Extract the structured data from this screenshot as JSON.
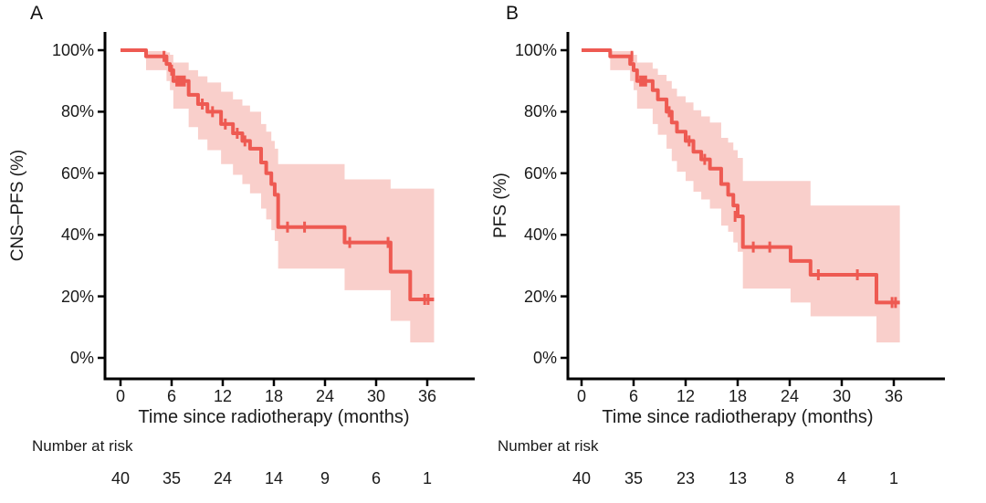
{
  "colors": {
    "line": "#ee5a52",
    "band": "#f9cfcb",
    "axis": "#000000",
    "text": "#1a1a1a"
  },
  "chart_data": [
    {
      "type": "line",
      "subtype": "kaplan_meier_step_with_ci",
      "panel_label": "A",
      "ylabel": "CNS–PFS (%)",
      "xlabel": "Time since radiotherapy (months)",
      "xlim": [
        0,
        38
      ],
      "ylim": [
        0,
        100
      ],
      "grid": false,
      "legend": false,
      "x_ticks": [
        0,
        6,
        12,
        18,
        24,
        30,
        36
      ],
      "x_tick_labels": [
        "0",
        "6",
        "12",
        "18",
        "24",
        "30",
        "36"
      ],
      "y_tick_values": [
        0,
        20,
        40,
        60,
        80,
        100
      ],
      "y_tick_labels": [
        "0%",
        "20%",
        "40%",
        "60%",
        "80%",
        "100%"
      ],
      "steps": [
        [
          0,
          100
        ],
        [
          3.0,
          98
        ],
        [
          5.4,
          95.5
        ],
        [
          5.8,
          93.5
        ],
        [
          6.2,
          90
        ],
        [
          8.0,
          85.5
        ],
        [
          9.1,
          82.5
        ],
        [
          10.2,
          80
        ],
        [
          11.8,
          76
        ],
        [
          13.2,
          73
        ],
        [
          14.3,
          70.5
        ],
        [
          15.2,
          68
        ],
        [
          16.5,
          63.5
        ],
        [
          17.1,
          60
        ],
        [
          17.7,
          56.5
        ],
        [
          18.1,
          53
        ],
        [
          18.5,
          42.5
        ],
        [
          26.3,
          37.5
        ],
        [
          31.7,
          28
        ],
        [
          34.0,
          19
        ]
      ],
      "end_time": 36.8,
      "censors": [
        [
          5.1,
          98
        ],
        [
          6.0,
          93.5
        ],
        [
          6.6,
          90
        ],
        [
          6.9,
          90
        ],
        [
          7.2,
          90
        ],
        [
          7.5,
          90
        ],
        [
          9.6,
          82.5
        ],
        [
          10.8,
          80
        ],
        [
          12.3,
          76
        ],
        [
          13.7,
          73
        ],
        [
          14.6,
          70.5
        ],
        [
          19.6,
          42.5
        ],
        [
          21.6,
          42.5
        ],
        [
          26.9,
          37.5
        ],
        [
          31.4,
          37.5
        ],
        [
          35.7,
          19
        ],
        [
          36.1,
          19
        ]
      ],
      "ci": [
        [
          3.0,
          93.5,
          99.7
        ],
        [
          5.4,
          90,
          99.3
        ],
        [
          5.8,
          87,
          98.5
        ],
        [
          6.2,
          81,
          96
        ],
        [
          8.0,
          75,
          93.5
        ],
        [
          9.1,
          71,
          91.5
        ],
        [
          10.2,
          67.5,
          89.5
        ],
        [
          11.8,
          63,
          86.5
        ],
        [
          13.2,
          59.5,
          84
        ],
        [
          14.3,
          56.5,
          82
        ],
        [
          15.2,
          53.5,
          80
        ],
        [
          16.5,
          48.5,
          76
        ],
        [
          17.1,
          45,
          73.5
        ],
        [
          17.7,
          41.5,
          70.5
        ],
        [
          18.1,
          38,
          68
        ],
        [
          18.5,
          29,
          63
        ],
        [
          26.3,
          22,
          58
        ],
        [
          31.7,
          12,
          55
        ],
        [
          34.0,
          5,
          55
        ]
      ],
      "number_at_risk": {
        "header": "Number at risk",
        "times": [
          0,
          6,
          12,
          18,
          24,
          30,
          36
        ],
        "values": [
          40,
          35,
          24,
          14,
          9,
          6,
          1
        ]
      }
    },
    {
      "type": "line",
      "subtype": "kaplan_meier_step_with_ci",
      "panel_label": "B",
      "ylabel": "PFS (%)",
      "xlabel": "Time since radiotherapy (months)",
      "xlim": [
        0,
        38
      ],
      "ylim": [
        0,
        100
      ],
      "grid": false,
      "legend": false,
      "x_ticks": [
        0,
        6,
        12,
        18,
        24,
        30,
        36
      ],
      "x_tick_labels": [
        "0",
        "6",
        "12",
        "18",
        "24",
        "30",
        "36"
      ],
      "y_tick_values": [
        0,
        20,
        40,
        60,
        80,
        100
      ],
      "y_tick_labels": [
        "0%",
        "20%",
        "40%",
        "60%",
        "80%",
        "100%"
      ],
      "steps": [
        [
          0,
          100
        ],
        [
          3.3,
          98
        ],
        [
          5.6,
          95.5
        ],
        [
          6.0,
          93.5
        ],
        [
          6.4,
          90
        ],
        [
          8.2,
          87
        ],
        [
          8.8,
          84
        ],
        [
          9.8,
          80
        ],
        [
          10.4,
          76.5
        ],
        [
          11.0,
          73.5
        ],
        [
          12.0,
          70.5
        ],
        [
          12.9,
          67
        ],
        [
          13.8,
          64.5
        ],
        [
          14.8,
          61.5
        ],
        [
          16.1,
          56.5
        ],
        [
          16.9,
          53
        ],
        [
          17.5,
          49.5
        ],
        [
          18.0,
          46
        ],
        [
          18.6,
          36
        ],
        [
          24.1,
          31.5
        ],
        [
          26.4,
          27
        ],
        [
          34.0,
          18
        ]
      ],
      "end_time": 36.7,
      "censors": [
        [
          5.8,
          98
        ],
        [
          6.8,
          90
        ],
        [
          7.1,
          90
        ],
        [
          7.4,
          90
        ],
        [
          10.1,
          80
        ],
        [
          12.4,
          70.5
        ],
        [
          14.2,
          64.5
        ],
        [
          17.7,
          46
        ],
        [
          19.8,
          36
        ],
        [
          21.7,
          36
        ],
        [
          27.3,
          27
        ],
        [
          31.8,
          27
        ],
        [
          35.8,
          18
        ],
        [
          36.2,
          18
        ]
      ],
      "ci": [
        [
          3.3,
          93.5,
          99.7
        ],
        [
          5.6,
          90,
          99.3
        ],
        [
          6.0,
          87,
          98.5
        ],
        [
          6.4,
          81,
          96
        ],
        [
          8.2,
          76,
          94
        ],
        [
          8.8,
          72.5,
          92
        ],
        [
          9.8,
          68,
          90
        ],
        [
          10.4,
          64,
          87.5
        ],
        [
          11.0,
          60.5,
          85
        ],
        [
          12.0,
          57.5,
          83
        ],
        [
          12.9,
          54,
          80.5
        ],
        [
          13.8,
          51.5,
          78.5
        ],
        [
          14.8,
          48.5,
          76.5
        ],
        [
          16.1,
          43,
          71.5
        ],
        [
          16.9,
          41,
          70
        ],
        [
          17.5,
          37.5,
          67.5
        ],
        [
          18.0,
          34.5,
          65
        ],
        [
          18.6,
          22.5,
          57.5
        ],
        [
          24.1,
          18,
          57.5
        ],
        [
          26.4,
          13.5,
          49.5
        ],
        [
          34.0,
          5,
          49.5
        ]
      ],
      "number_at_risk": {
        "header": "Number at risk",
        "times": [
          0,
          6,
          12,
          18,
          24,
          30,
          36
        ],
        "values": [
          40,
          35,
          23,
          13,
          8,
          4,
          1
        ]
      }
    }
  ]
}
